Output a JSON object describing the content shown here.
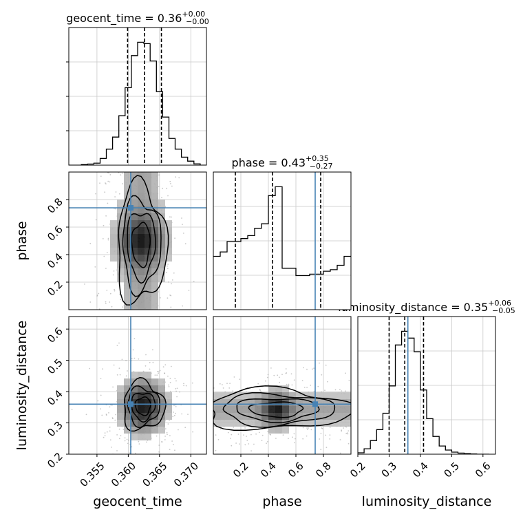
{
  "chart_data": [
    {
      "type": "histogram",
      "panel": "geocent_time-marginal",
      "title": "geocent_time = 0.36",
      "title_sup": "+0.00",
      "title_sub": "−0.00",
      "x_range": [
        0.3505,
        0.3725
      ],
      "bin_edges": [
        0.3505,
        0.3515,
        0.3525,
        0.3535,
        0.3545,
        0.3555,
        0.3565,
        0.3575,
        0.3585,
        0.3595,
        0.3605,
        0.3615,
        0.3625,
        0.3635,
        0.3645,
        0.3655,
        0.3665,
        0.3675,
        0.3685,
        0.3695,
        0.3705,
        0.3715,
        0.3725
      ],
      "values": [
        0.0,
        0.0,
        0.005,
        0.008,
        0.015,
        0.05,
        0.12,
        0.21,
        0.37,
        0.58,
        0.82,
        0.92,
        0.91,
        0.78,
        0.55,
        0.36,
        0.2,
        0.12,
        0.06,
        0.03,
        0.01,
        0.0
      ],
      "quantile_lines": [
        0.3599,
        0.3626,
        0.3653
      ]
    },
    {
      "type": "histogram",
      "panel": "phase-marginal",
      "title": "phase = 0.43",
      "title_sup": "+0.35",
      "title_sub": "−0.27",
      "x_range": [
        0.0,
        1.0
      ],
      "bin_edges": [
        0.0,
        0.05,
        0.1,
        0.15,
        0.2,
        0.25,
        0.3,
        0.35,
        0.4,
        0.45,
        0.5,
        0.55,
        0.6,
        0.65,
        0.7,
        0.75,
        0.8,
        0.85,
        0.9,
        0.95,
        1.0
      ],
      "values": [
        0.36,
        0.39,
        0.46,
        0.46,
        0.48,
        0.5,
        0.55,
        0.58,
        0.77,
        0.83,
        0.28,
        0.28,
        0.23,
        0.23,
        0.24,
        0.24,
        0.26,
        0.27,
        0.3,
        0.36
      ],
      "quantile_lines": [
        0.16,
        0.43,
        0.78
      ],
      "truth": 0.74
    },
    {
      "type": "histogram",
      "panel": "luminosity_distance-marginal",
      "title": "luminosity_distance = 0.35",
      "title_sup": "+0.06",
      "title_sub": "−0.05",
      "x_range": [
        0.2,
        0.64
      ],
      "bin_edges": [
        0.2,
        0.22,
        0.24,
        0.26,
        0.28,
        0.3,
        0.32,
        0.34,
        0.36,
        0.38,
        0.4,
        0.42,
        0.44,
        0.46,
        0.48,
        0.5,
        0.52,
        0.54,
        0.56,
        0.58,
        0.6,
        0.62
      ],
      "values": [
        0.01,
        0.04,
        0.1,
        0.18,
        0.3,
        0.5,
        0.8,
        0.9,
        0.85,
        0.75,
        0.47,
        0.26,
        0.13,
        0.06,
        0.03,
        0.015,
        0.008,
        0.004,
        0.002,
        0.0,
        0.0
      ],
      "quantile_lines": [
        0.3,
        0.35,
        0.41
      ],
      "truth": 0.36
    },
    {
      "type": "contour2d",
      "panel": "phase-vs-geocent_time",
      "x_range": [
        0.3505,
        0.3725
      ],
      "y_range": [
        0.0,
        1.0
      ],
      "truth": [
        0.3604,
        0.74
      ]
    },
    {
      "type": "contour2d",
      "panel": "luminosity_distance-vs-geocent_time",
      "x_range": [
        0.3505,
        0.3725
      ],
      "y_range": [
        0.2,
        0.64
      ],
      "truth": [
        0.3604,
        0.36
      ]
    },
    {
      "type": "contour2d",
      "panel": "luminosity_distance-vs-phase",
      "x_range": [
        0.0,
        1.0
      ],
      "y_range": [
        0.2,
        0.64
      ],
      "truth": [
        0.74,
        0.36
      ]
    }
  ],
  "axes": {
    "geocent_time": {
      "label": "geocent_time",
      "range": [
        0.3505,
        0.3725
      ],
      "ticks": [
        {
          "value": 0.355,
          "label": "0.355"
        },
        {
          "value": 0.36,
          "label": "0.360"
        },
        {
          "value": 0.365,
          "label": "0.365"
        },
        {
          "value": 0.37,
          "label": "0.370"
        }
      ]
    },
    "phase": {
      "label": "phase",
      "range": [
        0.0,
        1.0
      ],
      "ticks": [
        {
          "value": 0.2,
          "label": "0.2"
        },
        {
          "value": 0.4,
          "label": "0.4"
        },
        {
          "value": 0.6,
          "label": "0.6"
        },
        {
          "value": 0.8,
          "label": "0.8"
        }
      ]
    },
    "luminosity_distance": {
      "label": "luminosity_distance",
      "range": [
        0.2,
        0.64
      ],
      "ticks": [
        {
          "value": 0.2,
          "label": "0.2"
        },
        {
          "value": 0.3,
          "label": "0.3"
        },
        {
          "value": 0.4,
          "label": "0.4"
        },
        {
          "value": 0.5,
          "label": "0.5"
        },
        {
          "value": 0.6,
          "label": "0.6"
        }
      ]
    }
  },
  "colors": {
    "truth": "#4682b4",
    "line": "#000000",
    "grid": "#c8c8c8",
    "scatter": "#9a9a9a"
  },
  "grid": true
}
